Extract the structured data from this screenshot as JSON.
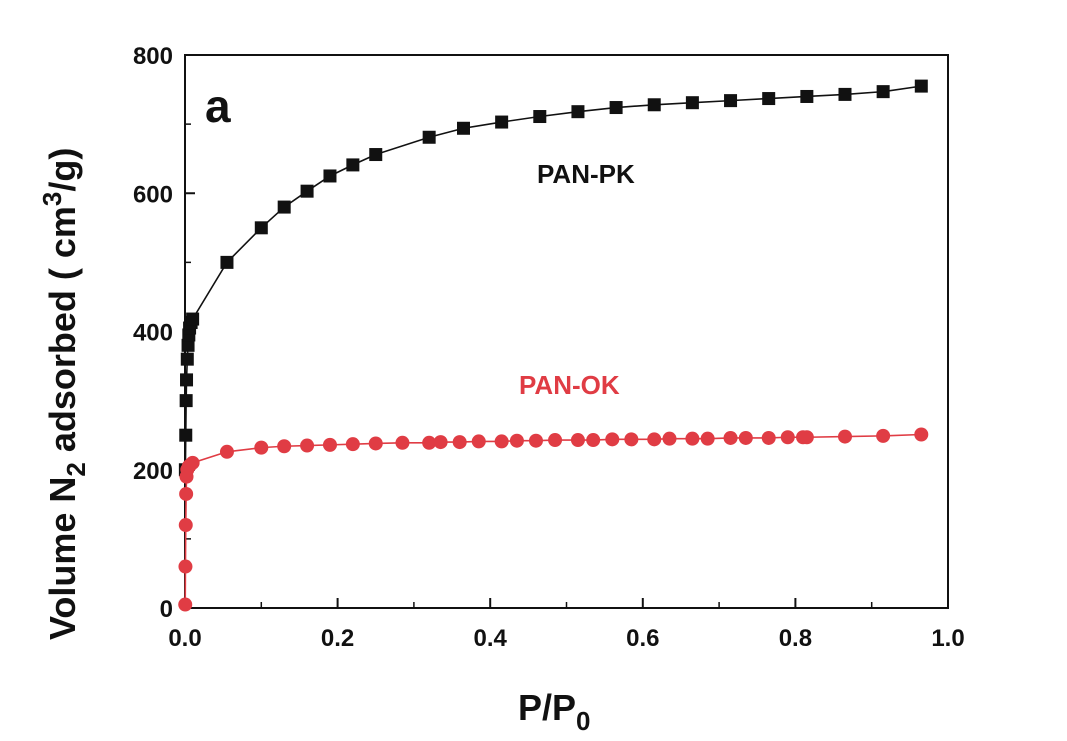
{
  "chart_data": {
    "type": "scatter",
    "panel_label": "a",
    "xlabel": {
      "main": "P/P",
      "sub": "0"
    },
    "ylabel": {
      "pre": "Volume N",
      "sub": "2",
      "mid": " adsorbed ( cm",
      "sup": "3",
      "post": "/g)"
    },
    "xlim": [
      0,
      1.0
    ],
    "ylim": [
      0,
      800
    ],
    "x_ticks": [
      0.0,
      0.2,
      0.4,
      0.6,
      0.8,
      1.0
    ],
    "x_tick_labels": [
      "0.0",
      "0.2",
      "0.4",
      "0.6",
      "0.8",
      "1.0"
    ],
    "y_ticks": [
      0,
      200,
      400,
      600,
      800
    ],
    "y_tick_labels": [
      "0",
      "200",
      "400",
      "600",
      "800"
    ],
    "grid": false,
    "series": [
      {
        "name": "PAN-PK",
        "color": "#111111",
        "marker": "square",
        "x": [
          0.0005,
          0.001,
          0.0015,
          0.002,
          0.003,
          0.004,
          0.005,
          0.006,
          0.008,
          0.01,
          0.055,
          0.1,
          0.13,
          0.16,
          0.19,
          0.22,
          0.25,
          0.32,
          0.365,
          0.415,
          0.465,
          0.515,
          0.565,
          0.615,
          0.665,
          0.715,
          0.765,
          0.815,
          0.865,
          0.915,
          0.965
        ],
        "y": [
          200,
          250,
          300,
          330,
          360,
          380,
          395,
          405,
          413,
          418,
          500,
          550,
          580,
          603,
          625,
          641,
          656,
          681,
          694,
          703,
          711,
          718,
          724,
          728,
          731,
          734,
          737,
          740,
          743,
          747,
          755
        ]
      },
      {
        "name": "PAN-OK",
        "color": "#e03c44",
        "marker": "circle",
        "x": [
          0.0003,
          0.0006,
          0.001,
          0.0015,
          0.002,
          0.003,
          0.005,
          0.007,
          0.01,
          0.055,
          0.1,
          0.13,
          0.16,
          0.19,
          0.22,
          0.25,
          0.285,
          0.32,
          0.335,
          0.36,
          0.385,
          0.415,
          0.435,
          0.46,
          0.485,
          0.515,
          0.535,
          0.56,
          0.585,
          0.615,
          0.635,
          0.665,
          0.685,
          0.715,
          0.735,
          0.765,
          0.79,
          0.81,
          0.815,
          0.865,
          0.915,
          0.965
        ],
        "y": [
          5,
          60,
          120,
          165,
          190,
          200,
          205,
          207,
          210,
          226,
          232,
          234,
          235,
          236,
          237,
          238,
          239,
          239,
          240,
          240,
          241,
          241,
          242,
          242,
          243,
          243,
          243,
          244,
          244,
          244,
          245,
          245,
          245,
          246,
          246,
          246,
          247,
          247,
          247,
          248,
          249,
          251
        ]
      }
    ]
  }
}
